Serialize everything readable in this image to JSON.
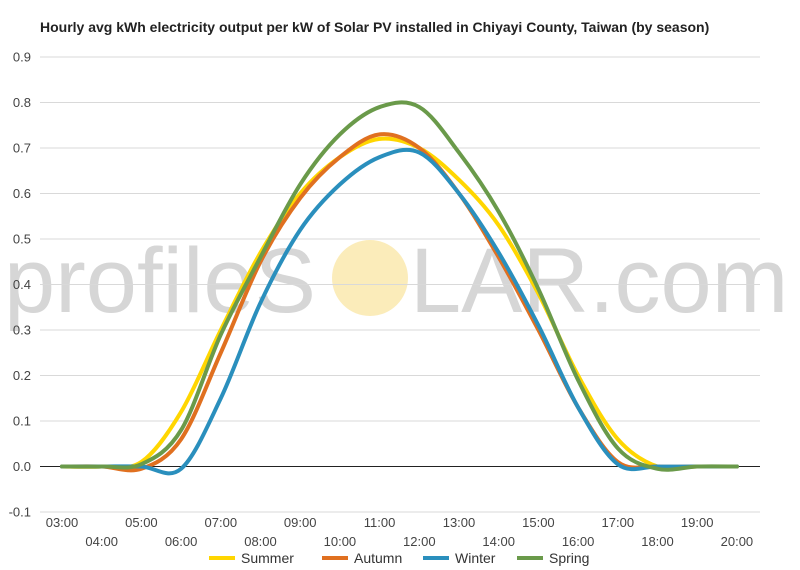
{
  "chart_data": {
    "type": "line",
    "title": "Hourly avg kWh electricity output per kW of Solar PV installed in Chiyayi County, Taiwan (by season)",
    "xlabel": "",
    "ylabel": "",
    "ylim": [
      -0.1,
      0.9
    ],
    "yticks": [
      "-0.1",
      "0.0",
      "0.1",
      "0.2",
      "0.3",
      "0.4",
      "0.5",
      "0.6",
      "0.7",
      "0.8",
      "0.9"
    ],
    "categories": [
      "03:00",
      "04:00",
      "05:00",
      "06:00",
      "07:00",
      "08:00",
      "09:00",
      "10:00",
      "11:00",
      "12:00",
      "13:00",
      "14:00",
      "15:00",
      "16:00",
      "17:00",
      "18:00",
      "19:00",
      "20:00"
    ],
    "grid": true,
    "legend_position": "bottom",
    "series": [
      {
        "name": "Summer",
        "color": "#ffd600",
        "values": [
          0.0,
          0.0,
          0.01,
          0.12,
          0.3,
          0.47,
          0.6,
          0.68,
          0.72,
          0.7,
          0.63,
          0.53,
          0.38,
          0.2,
          0.06,
          0.0,
          0.0,
          0.0
        ]
      },
      {
        "name": "Autumn",
        "color": "#e07020",
        "values": [
          0.0,
          0.0,
          -0.005,
          0.06,
          0.25,
          0.45,
          0.59,
          0.68,
          0.73,
          0.7,
          0.6,
          0.46,
          0.3,
          0.13,
          0.01,
          0.0,
          0.0,
          0.0
        ]
      },
      {
        "name": "Winter",
        "color": "#2a8fbd",
        "values": [
          0.0,
          0.0,
          0.0,
          -0.005,
          0.15,
          0.36,
          0.52,
          0.62,
          0.68,
          0.69,
          0.6,
          0.47,
          0.31,
          0.13,
          0.005,
          0.0,
          0.0,
          0.0
        ]
      },
      {
        "name": "Spring",
        "color": "#6a9a4a",
        "values": [
          0.0,
          0.0,
          0.005,
          0.08,
          0.29,
          0.46,
          0.62,
          0.73,
          0.79,
          0.79,
          0.69,
          0.56,
          0.39,
          0.19,
          0.04,
          -0.005,
          0.0,
          0.0
        ]
      }
    ]
  },
  "watermark": {
    "left": "profileS",
    "right": "LAR.com",
    "sun_color": "#fbeab2"
  }
}
